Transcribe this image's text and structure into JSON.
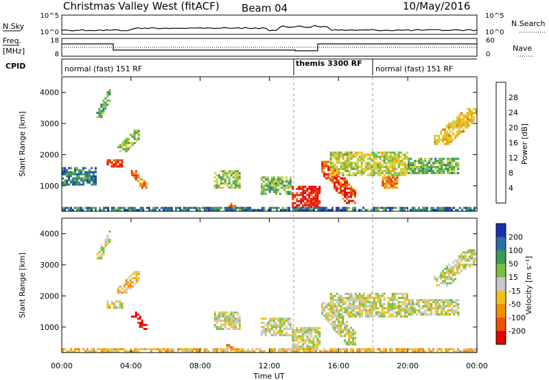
{
  "header": {
    "station": "Christmas Valley West (fitACF)",
    "beam": "Beam 04",
    "date": "10/May/2016"
  },
  "side_labels": {
    "nsky": "N.Sky",
    "nsearch": "N.Search",
    "freq": "Freq.",
    "freq_unit": "[MHz]",
    "nave": "Nave",
    "cpid": "CPID"
  },
  "top_panel": {
    "left_ticks": [
      "10^5",
      "10^0"
    ],
    "right_ticks": [
      "10^5",
      "10^0"
    ]
  },
  "freq_panel": {
    "left_ticks": [
      "18",
      "8"
    ],
    "right_ticks": [
      "60",
      "0"
    ]
  },
  "cpid_segments": [
    {
      "label": "normal (fast) 151 RF",
      "start_h": 0,
      "end_h": 13.5
    },
    {
      "label": "themis 3300 RF",
      "start_h": 13.5,
      "end_h": 18
    },
    {
      "label": "normal (fast) 151 RF",
      "start_h": 18,
      "end_h": 24
    }
  ],
  "time_axis": {
    "label": "Time UT",
    "ticks": [
      "00:00",
      "04:00",
      "08:00",
      "12:00",
      "16:00",
      "20:00",
      "00:00"
    ],
    "range_hours": [
      0,
      24
    ]
  },
  "chart_data": [
    {
      "type": "heatmap",
      "title": "",
      "quantity": "Power",
      "xlabel": "Time UT",
      "ylabel": "Slant Range [km]",
      "xlim": [
        0,
        24
      ],
      "ylim": [
        180,
        4500
      ],
      "yticks": [
        "1000",
        "2000",
        "3000",
        "4000"
      ],
      "colorbar": {
        "label": "Power [dB]",
        "ticks": [
          "4",
          "8",
          "12",
          "16",
          "20",
          "24",
          "28"
        ],
        "colors": [
          "#0000ff",
          "#1a3fb8",
          "#2e6e8e",
          "#3e9a5a",
          "#6fb84a",
          "#c8d33c",
          "#f0c020",
          "#f5a000",
          "#f06a00",
          "#ee2a00",
          "#e80000"
        ]
      },
      "regions": [
        {
          "t0": 2.0,
          "t1": 2.8,
          "r0": 3200,
          "r1": 4100,
          "slope": -1,
          "level": 0.35
        },
        {
          "t0": 2.6,
          "t1": 3.5,
          "r0": 1600,
          "r1": 1850,
          "slope": 0,
          "level": 0.85
        },
        {
          "t0": 3.2,
          "t1": 4.5,
          "r0": 2100,
          "r1": 2800,
          "slope": -1,
          "level": 0.45
        },
        {
          "t0": 4.0,
          "t1": 5.0,
          "r0": 900,
          "r1": 1500,
          "slope": 1,
          "level": 0.75
        },
        {
          "t0": 0.0,
          "t1": 2.0,
          "r0": 1000,
          "r1": 1600,
          "slope": 0,
          "level": 0.25
        },
        {
          "t0": 8.8,
          "t1": 10.3,
          "r0": 900,
          "r1": 1500,
          "slope": 0,
          "level": 0.45
        },
        {
          "t0": 9.5,
          "t1": 10.5,
          "r0": 200,
          "r1": 450,
          "slope": 1,
          "level": 0.8
        },
        {
          "t0": 11.5,
          "t1": 13.3,
          "r0": 700,
          "r1": 1300,
          "slope": 0,
          "level": 0.4
        },
        {
          "t0": 13.3,
          "t1": 15.0,
          "r0": 300,
          "r1": 1000,
          "slope": 0,
          "level": 0.95
        },
        {
          "t0": 15.0,
          "t1": 17.0,
          "r0": 400,
          "r1": 1800,
          "slope": 1,
          "level": 0.85
        },
        {
          "t0": 15.5,
          "t1": 20.0,
          "r0": 1300,
          "r1": 2100,
          "slope": 0,
          "level": 0.5
        },
        {
          "t0": 18.5,
          "t1": 19.5,
          "r0": 900,
          "r1": 1300,
          "slope": 0,
          "level": 0.75
        },
        {
          "t0": 20.0,
          "t1": 23.0,
          "r0": 1400,
          "r1": 1900,
          "slope": 0,
          "level": 0.4
        },
        {
          "t0": 21.5,
          "t1": 24.0,
          "r0": 2300,
          "r1": 3500,
          "slope": -1,
          "level": 0.6
        },
        {
          "t0": 0.0,
          "t1": 24.0,
          "r0": 180,
          "r1": 320,
          "slope": 0,
          "level": 0.25
        }
      ]
    },
    {
      "type": "heatmap",
      "title": "",
      "quantity": "Velocity",
      "xlabel": "Time UT",
      "ylabel": "Slant Range [km]",
      "xlim": [
        0,
        24
      ],
      "ylim": [
        180,
        4500
      ],
      "yticks": [
        "1000",
        "2000",
        "3000",
        "4000"
      ],
      "colorbar": {
        "label": "Velocity [m s⁻¹]",
        "ticks": [
          "200",
          "100",
          "50",
          "15",
          "-15",
          "-50",
          "-100",
          "-200"
        ],
        "colors": [
          "#1a2fb0",
          "#2b6fa8",
          "#3a9a5a",
          "#78c040",
          "#c8c8c8",
          "#f0c020",
          "#f09000",
          "#f05000",
          "#e80000"
        ]
      },
      "regions": [
        {
          "t0": 2.0,
          "t1": 2.8,
          "r0": 3200,
          "r1": 4100,
          "slope": -1,
          "level": 0.5
        },
        {
          "t0": 2.6,
          "t1": 3.5,
          "r0": 1600,
          "r1": 1850,
          "slope": 0,
          "level": 0.5
        },
        {
          "t0": 3.2,
          "t1": 4.5,
          "r0": 2100,
          "r1": 2800,
          "slope": -1,
          "level": 0.62
        },
        {
          "t0": 4.0,
          "t1": 5.0,
          "r0": 900,
          "r1": 1500,
          "slope": 1,
          "level": 0.97
        },
        {
          "t0": 8.8,
          "t1": 10.3,
          "r0": 900,
          "r1": 1500,
          "slope": 0,
          "level": 0.5
        },
        {
          "t0": 9.5,
          "t1": 10.5,
          "r0": 200,
          "r1": 450,
          "slope": 1,
          "level": 0.7
        },
        {
          "t0": 11.5,
          "t1": 13.3,
          "r0": 700,
          "r1": 1300,
          "slope": 0,
          "level": 0.5
        },
        {
          "t0": 13.3,
          "t1": 15.0,
          "r0": 300,
          "r1": 1000,
          "slope": 0,
          "level": 0.5
        },
        {
          "t0": 15.0,
          "t1": 17.0,
          "r0": 400,
          "r1": 1800,
          "slope": 1,
          "level": 0.5
        },
        {
          "t0": 15.5,
          "t1": 20.0,
          "r0": 1300,
          "r1": 2100,
          "slope": 0,
          "level": 0.5
        },
        {
          "t0": 20.0,
          "t1": 23.0,
          "r0": 1400,
          "r1": 1900,
          "slope": 0,
          "level": 0.5
        },
        {
          "t0": 21.5,
          "t1": 24.0,
          "r0": 2300,
          "r1": 3500,
          "slope": -1,
          "level": 0.5
        },
        {
          "t0": 0.0,
          "t1": 24.0,
          "r0": 180,
          "r1": 320,
          "slope": 0,
          "level": 0.62
        }
      ]
    }
  ]
}
